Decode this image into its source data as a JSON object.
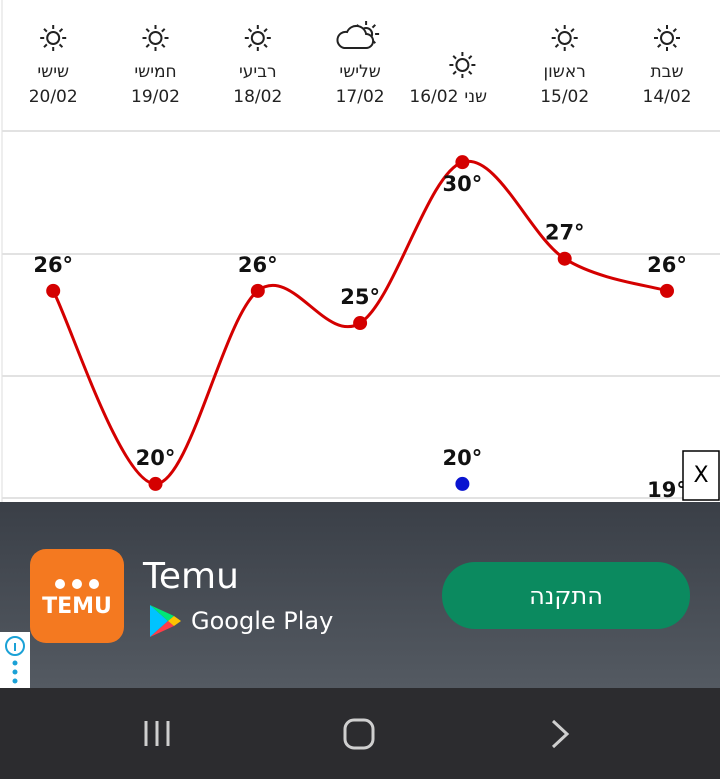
{
  "days": [
    {
      "name": "שבת",
      "icon": "sun"
    },
    {
      "name": "ראשון",
      "icon": "sun"
    },
    {
      "name": "שני",
      "icon": "sun"
    },
    {
      "name": "שלישי",
      "icon": "partly-cloudy"
    },
    {
      "name": "רביעי",
      "icon": "sun"
    },
    {
      "name": "חמישי",
      "icon": "sun"
    },
    {
      "name": "שישי",
      "icon": "sun"
    }
  ],
  "chart_data": {
    "type": "line",
    "categories": [
      "14/02",
      "15/02",
      "16/02",
      "17/02",
      "18/02",
      "19/02",
      "20/02"
    ],
    "direction": "rtl",
    "ylim": [
      19.5,
      31
    ],
    "series": [
      {
        "color": "#d40000",
        "values": [
          26,
          27,
          30,
          25,
          26,
          20,
          26
        ],
        "value_labels": [
          "26°",
          "27°",
          "30°",
          "25°",
          "26°",
          "20°",
          "26°"
        ]
      },
      {
        "color": "#0a14d0",
        "values": [
          19,
          null,
          20,
          null,
          null,
          null,
          null
        ],
        "value_labels": [
          "19°",
          null,
          "20°",
          null,
          null,
          null,
          null
        ]
      }
    ]
  },
  "ad": {
    "icon_text": "TEMU",
    "brand": "Temu",
    "store": "Google Play",
    "button": "התקנה",
    "close": "X"
  }
}
